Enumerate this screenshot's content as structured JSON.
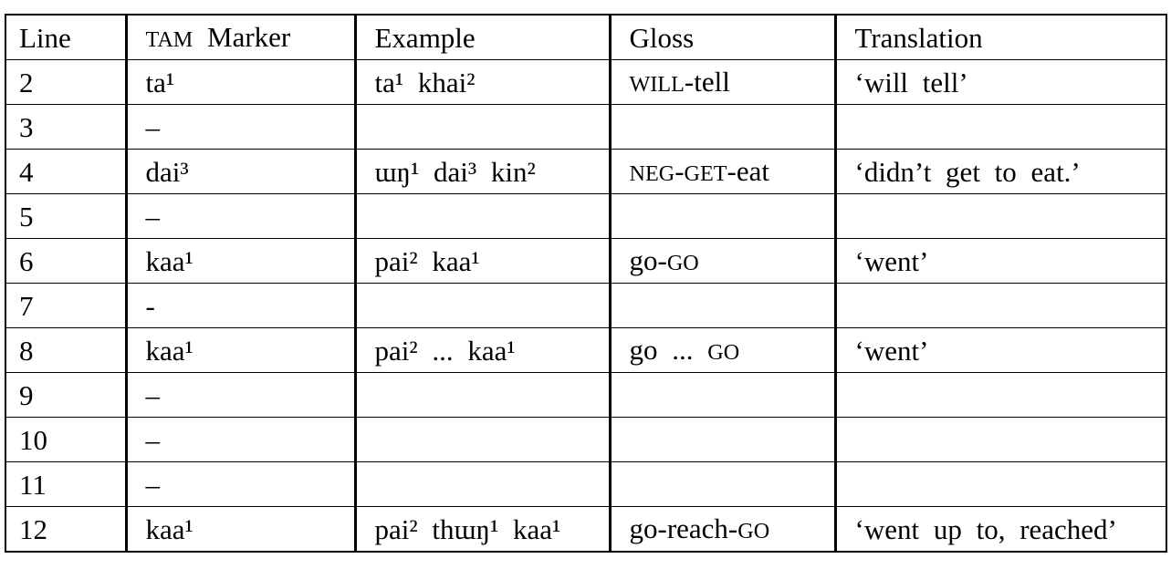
{
  "table": {
    "header": [
      "Line",
      "TAM Marker",
      "Example",
      "Gloss",
      "Translation"
    ],
    "rows": [
      [
        "2",
        "ta¹",
        "ta¹ khai²",
        "WILL-tell",
        "‘will tell’"
      ],
      [
        "3",
        "–",
        "",
        "",
        ""
      ],
      [
        "4",
        "dai³",
        "ɯŋ¹ dai³ kin²",
        "NEG-GET-eat",
        "‘didn’t get to eat.’"
      ],
      [
        "5",
        "–",
        "",
        "",
        ""
      ],
      [
        "6",
        "kaa¹",
        "pai² kaa¹",
        "go-GO",
        "‘went’"
      ],
      [
        "7",
        "-",
        "",
        "",
        ""
      ],
      [
        "8",
        "kaa¹",
        "pai² ... kaa¹",
        "go ... GO",
        "‘went’"
      ],
      [
        "9",
        "–",
        "",
        "",
        ""
      ],
      [
        "10",
        "–",
        "",
        "",
        ""
      ],
      [
        "11",
        "–",
        "",
        "",
        ""
      ],
      [
        "12",
        "kaa¹",
        "pai² thɯŋ¹ kaa¹",
        "go-reach-GO",
        "‘went up to, reached’"
      ]
    ]
  }
}
